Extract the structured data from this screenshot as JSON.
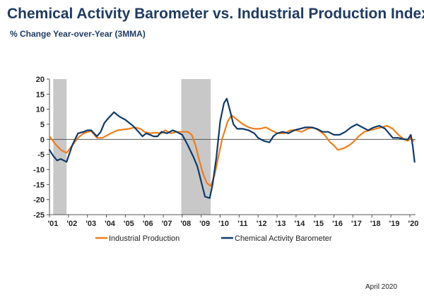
{
  "header": {
    "title": "Chemical Activity Barometer vs. Industrial Production Index",
    "subtitle": "% Change Year-over-Year (3MMA)"
  },
  "footer": {
    "date": "April 2020"
  },
  "colors": {
    "ip": "#f07d1a",
    "cab": "#0f3a68",
    "recession": "#c8c8c8",
    "axis": "#555555",
    "title": "#1f3b63"
  },
  "chart_data": {
    "type": "line",
    "xlim": [
      2001.0,
      2020.3
    ],
    "ylim": [
      -25,
      20
    ],
    "yticks": [
      20,
      15,
      10,
      5,
      0,
      -5,
      -10,
      -15,
      -20,
      -25
    ],
    "xticks": [
      "'01",
      "'02",
      "'03",
      "'04",
      "'05",
      "'06",
      "'07",
      "'08",
      "'09",
      "'10",
      "'11",
      "'12",
      "'13",
      "'14",
      "'15",
      "'16",
      "'17",
      "'18",
      "'19",
      "'20"
    ],
    "recessions": [
      [
        2001.2,
        2001.9
      ],
      [
        2007.95,
        2009.5
      ]
    ],
    "grid": false,
    "legend_position": "bottom",
    "series": [
      {
        "name": "Industrial Production",
        "color_key": "ip",
        "points": [
          [
            2001.0,
            1.0
          ],
          [
            2001.3,
            -1.5
          ],
          [
            2001.6,
            -3.5
          ],
          [
            2001.9,
            -4.5
          ],
          [
            2002.2,
            -2.0
          ],
          [
            2002.5,
            0.5
          ],
          [
            2002.8,
            2.0
          ],
          [
            2003.2,
            2.8
          ],
          [
            2003.5,
            0.5
          ],
          [
            2003.8,
            0.5
          ],
          [
            2004.0,
            1.2
          ],
          [
            2004.3,
            2.2
          ],
          [
            2004.6,
            3.0
          ],
          [
            2004.9,
            3.3
          ],
          [
            2005.2,
            3.5
          ],
          [
            2005.5,
            4.0
          ],
          [
            2005.8,
            3.5
          ],
          [
            2006.0,
            2.5
          ],
          [
            2006.3,
            2.0
          ],
          [
            2006.6,
            2.2
          ],
          [
            2006.9,
            2.0
          ],
          [
            2007.1,
            3.0
          ],
          [
            2007.4,
            2.0
          ],
          [
            2007.7,
            2.5
          ],
          [
            2008.0,
            2.5
          ],
          [
            2008.3,
            2.5
          ],
          [
            2008.5,
            1.5
          ],
          [
            2008.7,
            -2.0
          ],
          [
            2008.9,
            -7.0
          ],
          [
            2009.1,
            -11.5
          ],
          [
            2009.3,
            -14.5
          ],
          [
            2009.5,
            -15.5
          ],
          [
            2009.7,
            -12.0
          ],
          [
            2009.9,
            -6.0
          ],
          [
            2010.1,
            0.0
          ],
          [
            2010.4,
            6.0
          ],
          [
            2010.6,
            8.0
          ],
          [
            2010.9,
            6.5
          ],
          [
            2011.2,
            5.0
          ],
          [
            2011.5,
            4.0
          ],
          [
            2011.8,
            3.5
          ],
          [
            2012.1,
            3.5
          ],
          [
            2012.4,
            4.0
          ],
          [
            2012.7,
            3.0
          ],
          [
            2013.0,
            2.0
          ],
          [
            2013.4,
            2.0
          ],
          [
            2013.7,
            3.0
          ],
          [
            2014.0,
            3.0
          ],
          [
            2014.3,
            2.5
          ],
          [
            2014.6,
            3.5
          ],
          [
            2014.9,
            4.0
          ],
          [
            2015.2,
            3.0
          ],
          [
            2015.5,
            1.5
          ],
          [
            2015.8,
            -1.0
          ],
          [
            2016.0,
            -2.0
          ],
          [
            2016.2,
            -3.5
          ],
          [
            2016.5,
            -3.0
          ],
          [
            2016.8,
            -2.0
          ],
          [
            2017.0,
            -1.0
          ],
          [
            2017.3,
            1.0
          ],
          [
            2017.6,
            2.5
          ],
          [
            2017.9,
            3.0
          ],
          [
            2018.2,
            3.5
          ],
          [
            2018.5,
            4.0
          ],
          [
            2018.8,
            4.5
          ],
          [
            2019.1,
            3.5
          ],
          [
            2019.4,
            1.5
          ],
          [
            2019.7,
            0.0
          ],
          [
            2019.9,
            -0.5
          ],
          [
            2020.05,
            0.5
          ],
          [
            2020.2,
            -0.5
          ]
        ]
      },
      {
        "name": "Chemical Activity Barometer",
        "color_key": "cab",
        "points": [
          [
            2001.0,
            -3.5
          ],
          [
            2001.2,
            -5.5
          ],
          [
            2001.4,
            -7.0
          ],
          [
            2001.6,
            -6.5
          ],
          [
            2001.9,
            -7.5
          ],
          [
            2002.2,
            -2.0
          ],
          [
            2002.5,
            2.0
          ],
          [
            2002.8,
            2.5
          ],
          [
            2003.0,
            3.0
          ],
          [
            2003.2,
            3.0
          ],
          [
            2003.5,
            1.0
          ],
          [
            2003.7,
            2.5
          ],
          [
            2003.9,
            5.5
          ],
          [
            2004.1,
            7.0
          ],
          [
            2004.4,
            9.0
          ],
          [
            2004.7,
            7.5
          ],
          [
            2005.0,
            6.5
          ],
          [
            2005.2,
            5.5
          ],
          [
            2005.4,
            4.5
          ],
          [
            2005.7,
            2.5
          ],
          [
            2005.9,
            1.0
          ],
          [
            2006.1,
            2.0
          ],
          [
            2006.3,
            1.5
          ],
          [
            2006.5,
            1.0
          ],
          [
            2006.7,
            1.0
          ],
          [
            2006.9,
            2.5
          ],
          [
            2007.2,
            2.0
          ],
          [
            2007.5,
            3.0
          ],
          [
            2007.7,
            2.5
          ],
          [
            2008.0,
            1.5
          ],
          [
            2008.3,
            -2.0
          ],
          [
            2008.6,
            -6.0
          ],
          [
            2008.8,
            -9.0
          ],
          [
            2009.0,
            -14.0
          ],
          [
            2009.2,
            -19.0
          ],
          [
            2009.45,
            -19.5
          ],
          [
            2009.6,
            -15.0
          ],
          [
            2009.8,
            -6.0
          ],
          [
            2010.0,
            6.0
          ],
          [
            2010.2,
            12.0
          ],
          [
            2010.35,
            13.5
          ],
          [
            2010.5,
            10.0
          ],
          [
            2010.7,
            5.0
          ],
          [
            2010.9,
            3.5
          ],
          [
            2011.2,
            3.5
          ],
          [
            2011.5,
            3.0
          ],
          [
            2011.8,
            2.0
          ],
          [
            2012.0,
            0.5
          ],
          [
            2012.3,
            -0.5
          ],
          [
            2012.6,
            -1.0
          ],
          [
            2012.8,
            1.0
          ],
          [
            2013.0,
            2.0
          ],
          [
            2013.3,
            2.5
          ],
          [
            2013.6,
            2.0
          ],
          [
            2013.9,
            3.0
          ],
          [
            2014.2,
            3.5
          ],
          [
            2014.5,
            4.0
          ],
          [
            2014.8,
            4.0
          ],
          [
            2015.1,
            3.5
          ],
          [
            2015.4,
            2.5
          ],
          [
            2015.7,
            2.5
          ],
          [
            2016.0,
            1.5
          ],
          [
            2016.3,
            1.5
          ],
          [
            2016.6,
            2.5
          ],
          [
            2016.9,
            4.0
          ],
          [
            2017.2,
            5.0
          ],
          [
            2017.5,
            4.0
          ],
          [
            2017.8,
            3.0
          ],
          [
            2018.1,
            4.0
          ],
          [
            2018.4,
            4.5
          ],
          [
            2018.7,
            3.5
          ],
          [
            2018.9,
            2.0
          ],
          [
            2019.1,
            0.5
          ],
          [
            2019.4,
            0.5
          ],
          [
            2019.7,
            0.0
          ],
          [
            2019.9,
            0.0
          ],
          [
            2020.05,
            1.5
          ],
          [
            2020.15,
            -2.0
          ],
          [
            2020.25,
            -7.5
          ]
        ]
      }
    ]
  }
}
